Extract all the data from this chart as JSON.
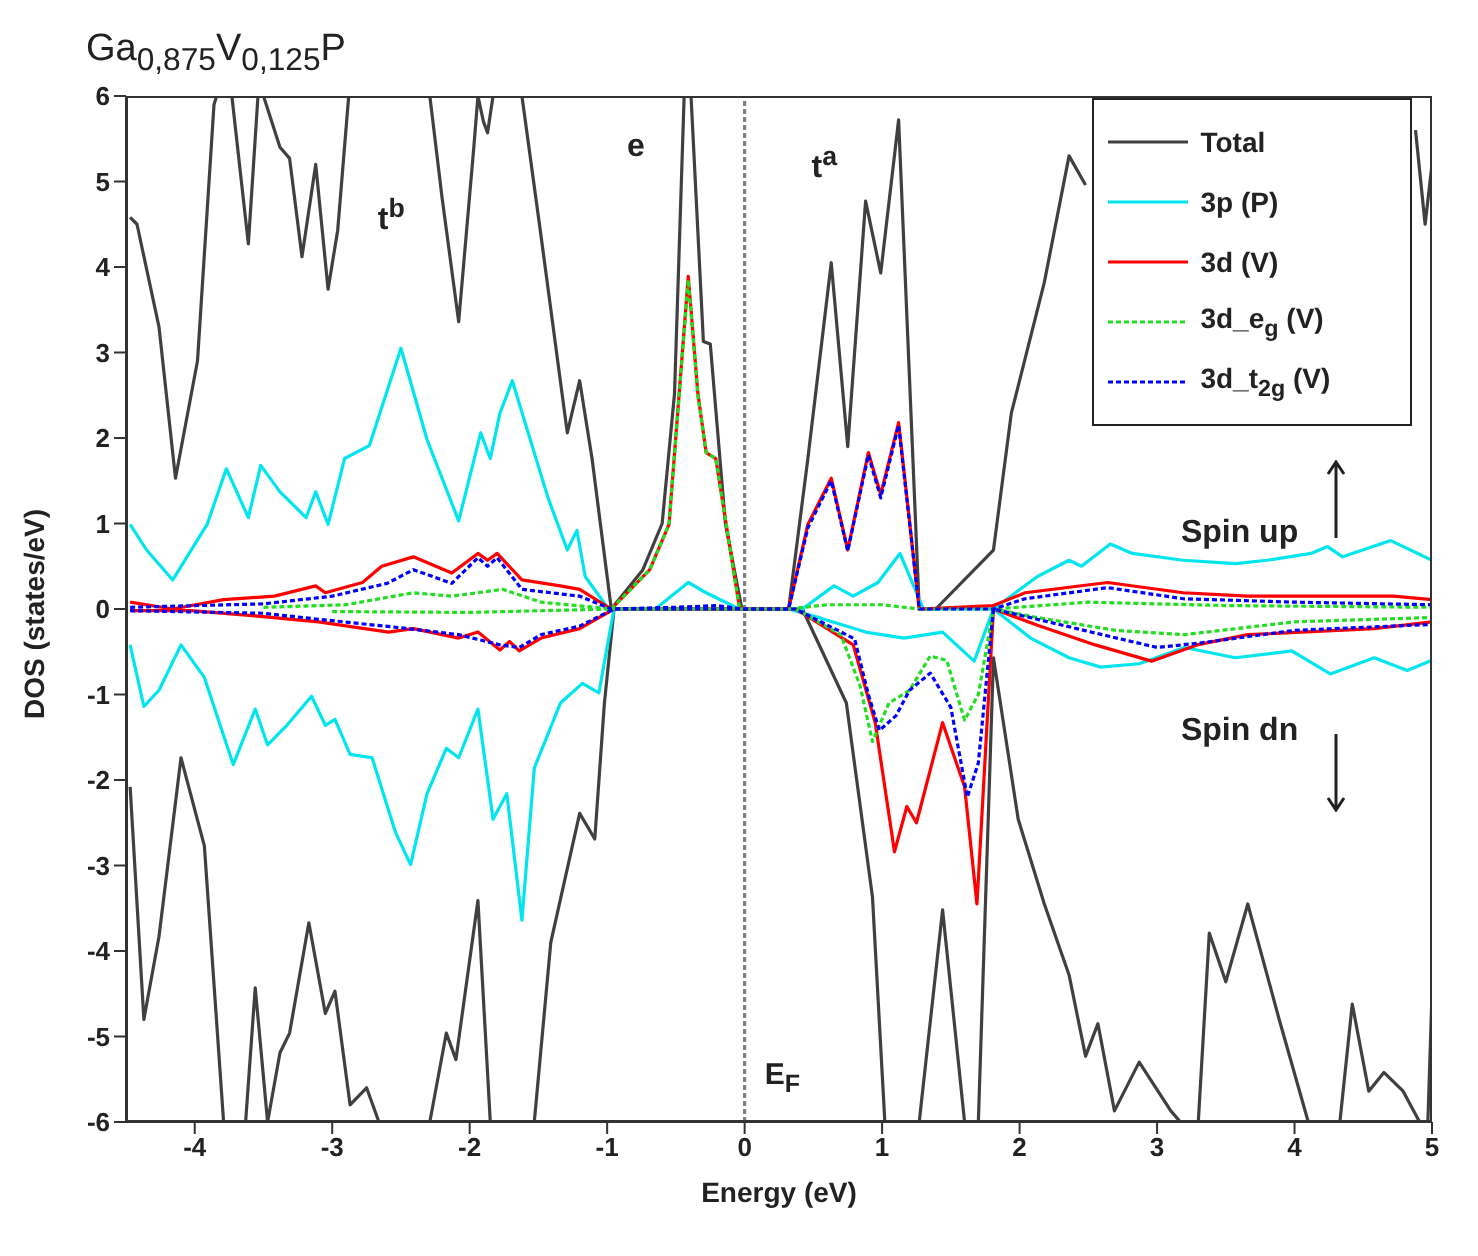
{
  "chart_data": {
    "type": "line",
    "title": "Ga$_{0,875}$V$_{0,125}$P",
    "xlabel": "Energy (eV)",
    "ylabel": "DOS (states/eV)",
    "xlim": [
      -4.5,
      5
    ],
    "ylim": [
      -6,
      6
    ],
    "xticks": [
      -4,
      -3,
      -2,
      -1,
      0,
      1,
      2,
      3,
      4,
      5
    ],
    "yticks": [
      -6,
      -5,
      -4,
      -3,
      -2,
      -1,
      0,
      1,
      2,
      3,
      4,
      5,
      6
    ],
    "legend": "top right",
    "ref_lines": [
      {
        "axis": "x",
        "value": 0,
        "label": "E$_{F}$",
        "color": "#808080",
        "line_style": "dashed"
      }
    ],
    "annotations": [
      "t$^{b}$",
      "e",
      "t$^{a}$",
      "Spin up",
      "Spin dn"
    ],
    "series": [
      {
        "name": "Total",
        "color": "#404040",
        "line_style": "solid",
        "x": [
          -4.47,
          -4.42,
          -4.26,
          -4.14,
          -3.98,
          -3.86,
          -3.84,
          -3.78,
          -3.73,
          -3.61,
          -3.54,
          -3.52,
          -3.5,
          -3.38,
          -3.31,
          -3.22,
          -3.12,
          -3.03,
          -2.96,
          -2.88,
          -2.6,
          -2.29,
          -2.2,
          -2.08,
          -1.97,
          -1.94,
          -1.9,
          -1.87,
          -1.83,
          -1.7,
          -1.62,
          -1.48,
          -1.29,
          -1.2,
          -1.11,
          -0.97,
          -0.74,
          -0.6,
          -0.51,
          -0.44,
          -0.42,
          -0.39,
          -0.3,
          -0.25,
          -0.14,
          -0.02,
          0.32,
          0.46,
          0.63,
          0.75,
          0.88,
          0.99,
          1.12,
          1.27,
          1.39,
          1.81,
          1.94,
          2.18,
          2.36,
          2.48,
          2.5,
          4.87,
          4.88,
          4.95,
          5.0
        ],
        "values": [
          4.58,
          4.5,
          3.3,
          1.53,
          2.9,
          5.9,
          6,
          null,
          6,
          4.27,
          6,
          null,
          6,
          5.4,
          5.27,
          4.12,
          5.2,
          3.74,
          4.43,
          6,
          null,
          6,
          4.8,
          3.36,
          5.4,
          6,
          5.7,
          5.57,
          6,
          null,
          6,
          4.35,
          2.06,
          2.67,
          1.76,
          0,
          0.46,
          1.0,
          2.52,
          6,
          null,
          6,
          3.13,
          3.1,
          1.0,
          0,
          0,
          1.76,
          4.05,
          1.9,
          4.77,
          3.93,
          5.72,
          0,
          0,
          0.69,
          2.29,
          3.82,
          5.3,
          4.96,
          null,
          null,
          5.6,
          4.5,
          5.2
        ]
      },
      {
        "color": "#404040",
        "line_style": "solid",
        "x": [
          -4.47,
          -4.37,
          -4.26,
          -4.1,
          -3.93,
          -3.79,
          -3.7,
          -3.63,
          -3.56,
          -3.47,
          -3.38,
          -3.31,
          -3.17,
          -3.05,
          -2.98,
          -2.87,
          -2.75,
          -2.66,
          -2.5,
          -2.29,
          -2.17,
          -2.1,
          -1.94,
          -1.85,
          -1.7,
          -1.53,
          -1.41,
          -1.2,
          -1.09,
          -1.02,
          -0.95,
          0.42,
          0.74,
          0.93,
          1.02,
          1.15,
          1.27,
          1.44,
          1.6,
          1.65,
          1.7,
          1.81,
          1.99,
          2.18,
          2.36,
          2.48,
          2.57,
          2.69,
          2.87,
          3.1,
          3.17,
          3.25,
          3.3,
          3.38,
          3.5,
          3.66,
          3.89,
          4.1,
          4.2,
          4.33,
          4.42,
          4.54,
          4.65,
          4.79,
          4.91,
          4.95,
          4.97,
          5.0
        ],
        "values": [
          -2.08,
          -4.8,
          -3.83,
          -1.74,
          -2.77,
          -6,
          null,
          -6,
          -4.43,
          -6,
          -5.19,
          -4.96,
          -3.67,
          -4.73,
          -4.47,
          -5.8,
          -5.6,
          -6,
          null,
          -6,
          -4.96,
          -5.27,
          -3.41,
          -6,
          null,
          -6,
          -3.9,
          -2.39,
          -2.69,
          -1.1,
          0,
          0,
          -1.1,
          -3.37,
          -6,
          null,
          -6,
          -3.52,
          -6,
          null,
          -6,
          -0.57,
          -2.46,
          -3.45,
          -4.28,
          -5.23,
          -4.85,
          -5.87,
          -5.3,
          -5.87,
          -6,
          null,
          -6,
          -3.79,
          -4.36,
          -3.45,
          -4.81,
          -6,
          null,
          -6,
          -4.62,
          -5.64,
          -5.42,
          -5.64,
          -6,
          null,
          -6,
          -4.5
        ]
      },
      {
        "name": "3p (P)",
        "color": "#00e5ee",
        "line_style": "solid",
        "x": [
          -4.47,
          -4.35,
          -4.16,
          -3.91,
          -3.77,
          -3.61,
          -3.52,
          -3.38,
          -3.19,
          -3.12,
          -3.03,
          -2.91,
          -2.73,
          -2.5,
          -2.31,
          -2.08,
          -1.92,
          -1.85,
          -1.78,
          -1.69,
          -1.43,
          -1.29,
          -1.22,
          -1.16,
          -0.99,
          -0.65,
          -0.41,
          -0.28,
          -0.04,
          0.42,
          0.65,
          0.79,
          0.97,
          1.13,
          1.3,
          1.81,
          2.13,
          2.36,
          2.45,
          2.66,
          2.82,
          3.19,
          3.57,
          3.8,
          4.12,
          4.24,
          4.35,
          4.7,
          5.0
        ],
        "values": [
          0.99,
          0.69,
          0.34,
          0.99,
          1.64,
          1.07,
          1.68,
          1.37,
          1.07,
          1.37,
          0.99,
          1.76,
          1.91,
          3.05,
          1.98,
          1.03,
          2.06,
          1.76,
          2.29,
          2.67,
          1.3,
          0.69,
          0.92,
          0.38,
          0,
          0,
          0.31,
          0.19,
          0,
          0,
          0.27,
          0.15,
          0.31,
          0.65,
          0,
          0,
          0.38,
          0.57,
          0.5,
          0.76,
          0.65,
          0.57,
          0.53,
          0.57,
          0.65,
          0.73,
          0.61,
          0.8,
          0.57
        ]
      },
      {
        "color": "#00e5ee",
        "line_style": "solid",
        "x": [
          -4.47,
          -4.37,
          -4.26,
          -4.1,
          -3.93,
          -3.72,
          -3.56,
          -3.47,
          -3.33,
          -3.15,
          -3.05,
          -2.98,
          -2.87,
          -2.71,
          -2.54,
          -2.43,
          -2.31,
          -2.17,
          -2.08,
          -1.94,
          -1.83,
          -1.73,
          -1.62,
          -1.53,
          -1.34,
          -1.18,
          -1.06,
          -0.95,
          0.32,
          0.56,
          0.88,
          1.16,
          1.44,
          1.67,
          1.81,
          2.08,
          2.36,
          2.59,
          2.87,
          3.2,
          3.57,
          3.98,
          4.26,
          4.58,
          4.82,
          5.0
        ],
        "values": [
          -0.42,
          -1.14,
          -0.95,
          -0.42,
          -0.8,
          -1.82,
          -1.17,
          -1.59,
          -1.36,
          -1.02,
          -1.36,
          -1.29,
          -1.7,
          -1.74,
          -2.61,
          -2.99,
          -2.16,
          -1.63,
          -1.74,
          -1.17,
          -2.46,
          -2.16,
          -3.64,
          -1.86,
          -1.1,
          -0.87,
          -0.98,
          0,
          0,
          -0.11,
          -0.27,
          -0.34,
          -0.27,
          -0.61,
          0,
          -0.34,
          -0.57,
          -0.68,
          -0.64,
          -0.45,
          -0.57,
          -0.49,
          -0.76,
          -0.57,
          -0.72,
          -0.6
        ]
      },
      {
        "name": "3d (V)",
        "color": "#ff0000",
        "line_style": "solid",
        "x": [
          -4.47,
          -4.16,
          -3.79,
          -3.42,
          -3.12,
          -3.05,
          -2.78,
          -2.64,
          -2.41,
          -2.13,
          -1.94,
          -1.87,
          -1.8,
          -1.62,
          -1.34,
          -1.2,
          -0.97,
          -0.69,
          -0.55,
          -0.41,
          -0.34,
          -0.28,
          -0.21,
          -0.04,
          -0.02,
          0.32,
          0.46,
          0.63,
          0.75,
          0.9,
          0.99,
          1.12,
          1.27,
          1.81,
          2.04,
          2.64,
          3.19,
          3.66,
          4.72,
          5.0
        ],
        "values": [
          0.08,
          0,
          0.11,
          0.15,
          0.27,
          0.19,
          0.31,
          0.5,
          0.61,
          0.42,
          0.65,
          0.57,
          0.65,
          0.34,
          0.27,
          0.23,
          0,
          0.46,
          0.99,
          3.89,
          2.52,
          1.83,
          1.76,
          0.04,
          0,
          0,
          0.99,
          1.53,
          0.69,
          1.83,
          1.34,
          2.18,
          0,
          0.04,
          0.19,
          0.31,
          0.19,
          0.15,
          0.15,
          0.11
        ]
      },
      {
        "color": "#ff0000",
        "line_style": "solid",
        "x": [
          -4.47,
          -4.03,
          -3.56,
          -3.1,
          -2.59,
          -2.41,
          -2.08,
          -1.94,
          -1.78,
          -1.71,
          -1.64,
          -1.48,
          -1.2,
          -0.95,
          0.37,
          0.79,
          0.95,
          1.09,
          1.18,
          1.25,
          1.44,
          1.6,
          1.69,
          1.81,
          2.13,
          2.55,
          2.96,
          3.29,
          3.66,
          4.58,
          5.0
        ],
        "values": [
          -0.02,
          -0.02,
          -0.08,
          -0.15,
          -0.27,
          -0.23,
          -0.34,
          -0.27,
          -0.48,
          -0.38,
          -0.49,
          -0.34,
          -0.23,
          0,
          0,
          -0.42,
          -1.33,
          -2.84,
          -2.31,
          -2.5,
          -1.33,
          -2.08,
          -3.45,
          0,
          -0.19,
          -0.42,
          -0.61,
          -0.42,
          -0.3,
          -0.23,
          -0.15
        ]
      },
      {
        "name": "3d_e$_{g}$ (V)",
        "color": "#22dd22",
        "line_style": "dashed",
        "x": [
          -3.5,
          -2.9,
          -2.41,
          -2.13,
          -1.76,
          -1.48,
          -0.97,
          -0.69,
          -0.55,
          -0.41,
          -0.34,
          -0.28,
          -0.21,
          -0.04,
          -0.02,
          0.32,
          0.6,
          1.0,
          1.27,
          1.81,
          2.5,
          3.5,
          5.0
        ],
        "values": [
          0.02,
          0.05,
          0.19,
          0.15,
          0.23,
          0.08,
          0,
          0.46,
          0.99,
          3.85,
          2.5,
          1.83,
          1.76,
          0.04,
          0,
          0,
          0.05,
          0.05,
          0,
          0,
          0.08,
          0.04,
          0.02
        ]
      },
      {
        "color": "#22dd22",
        "line_style": "dashed",
        "x": [
          -3.0,
          -2,
          -0.95,
          0.37,
          0.7,
          0.84,
          0.93,
          1.05,
          1.2,
          1.35,
          1.47,
          1.6,
          1.7,
          1.81,
          2.13,
          2.7,
          3.2,
          4.0,
          5.0
        ],
        "values": [
          -0.03,
          -0.04,
          0,
          0,
          -0.3,
          -0.9,
          -1.55,
          -1.1,
          -0.95,
          -0.55,
          -0.6,
          -1.3,
          -1.0,
          0,
          -0.1,
          -0.25,
          -0.3,
          -0.15,
          -0.1
        ]
      },
      {
        "name": "3d_t$_{2g}$ (V)",
        "color": "#0000ff",
        "line_style": "dashed",
        "x": [
          -4.47,
          -3.5,
          -3.0,
          -2.6,
          -2.41,
          -2.13,
          -1.94,
          -1.87,
          -1.8,
          -1.62,
          -1.2,
          -0.97,
          -0.5,
          -0.2,
          -0.02,
          0.32,
          0.46,
          0.63,
          0.75,
          0.9,
          0.99,
          1.12,
          1.27,
          1.81,
          2.04,
          2.64,
          3.19,
          4.0,
          5.0
        ],
        "values": [
          0.02,
          0.06,
          0.15,
          0.3,
          0.46,
          0.3,
          0.6,
          0.5,
          0.6,
          0.23,
          0.15,
          0,
          0.02,
          0.04,
          0,
          0,
          0.95,
          1.5,
          0.68,
          1.8,
          1.3,
          2.15,
          0,
          0,
          0.12,
          0.25,
          0.12,
          0.08,
          0.05
        ]
      },
      {
        "color": "#0000ff",
        "line_style": "dashed",
        "x": [
          -4.47,
          -3.5,
          -3.1,
          -2.5,
          -2.08,
          -1.78,
          -1.64,
          -1.48,
          -1.2,
          -0.95,
          0.37,
          0.8,
          0.9,
          0.98,
          1.1,
          1.2,
          1.35,
          1.5,
          1.62,
          1.7,
          1.81,
          2.13,
          2.6,
          3.0,
          3.3,
          4.0,
          5.0
        ],
        "values": [
          -0.02,
          -0.05,
          -0.12,
          -0.22,
          -0.3,
          -0.42,
          -0.45,
          -0.3,
          -0.2,
          0,
          0,
          -0.35,
          -1.0,
          -1.42,
          -1.25,
          -0.95,
          -0.75,
          -1.15,
          -2.2,
          -1.8,
          0,
          -0.12,
          -0.3,
          -0.45,
          -0.4,
          -0.25,
          -0.18
        ]
      }
    ]
  }
}
